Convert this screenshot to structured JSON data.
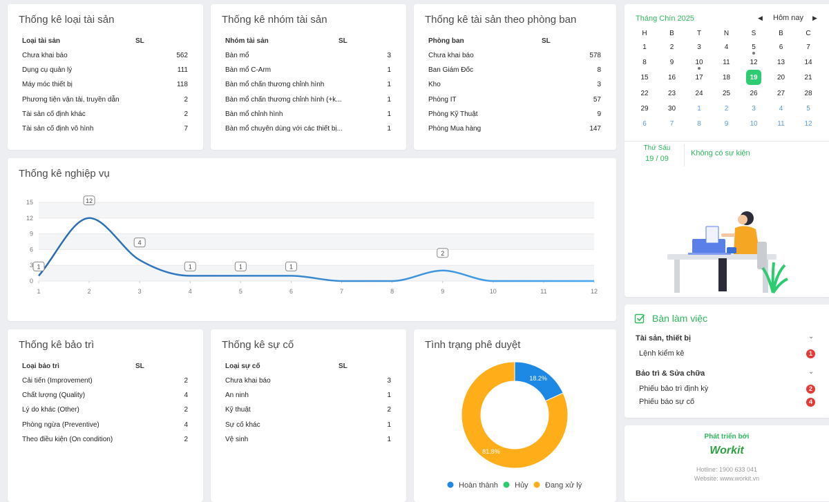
{
  "asset_types": {
    "title": "Thống kê loại tài sản",
    "columns": [
      "Loại tài sản",
      "SL"
    ],
    "rows": [
      [
        "Chưa khai báo",
        562
      ],
      [
        "Dụng cụ quản lý",
        111
      ],
      [
        "Máy móc thiết bị",
        118
      ],
      [
        "Phương tiện vận tải, truyền dẫn",
        2
      ],
      [
        "Tài sản cố định khác",
        2
      ],
      [
        "Tài sản cố định vô hình",
        7
      ]
    ]
  },
  "asset_groups": {
    "title": "Thống kê nhóm tài sản",
    "columns": [
      "Nhóm tài sản",
      "SL"
    ],
    "rows": [
      [
        "Bàn mổ",
        3
      ],
      [
        "Bàn mổ C-Arm",
        1
      ],
      [
        "Bàn mổ chấn thương chỉnh hình",
        1
      ],
      [
        "Bàn mổ chấn thương chỉnh hình (+k...",
        1
      ],
      [
        "Bàn mổ chỉnh hình",
        1
      ],
      [
        "Bàn mổ chuyên dùng với các thiết bị...",
        1
      ]
    ]
  },
  "asset_departments": {
    "title": "Thống kê tài sản theo phòng ban",
    "columns": [
      "Phòng ban",
      "SL"
    ],
    "rows": [
      [
        "Chưa khai báo",
        578
      ],
      [
        "Ban Giám Đốc",
        8
      ],
      [
        "Kho",
        3
      ],
      [
        "Phòng IT",
        57
      ],
      [
        "Phòng Kỹ Thuật",
        9
      ],
      [
        "Phòng Mua hàng",
        147
      ]
    ]
  },
  "maintenance": {
    "title": "Thống kê bảo trì",
    "columns": [
      "Loại bảo trì",
      "SL"
    ],
    "rows": [
      [
        "Cải tiến (Improvement)",
        2
      ],
      [
        "Chất lượng (Quality)",
        4
      ],
      [
        "Lý do khác (Other)",
        2
      ],
      [
        "Phòng ngừa (Preventive)",
        4
      ],
      [
        "Theo điều kiện (On condition)",
        2
      ]
    ]
  },
  "incidents": {
    "title": "Thống kê sự cố",
    "columns": [
      "Loại sự cố",
      "SL"
    ],
    "rows": [
      [
        "Chưa khai báo",
        3
      ],
      [
        "An ninh",
        1
      ],
      [
        "Kỹ thuật",
        2
      ],
      [
        "Sự cố khác",
        1
      ],
      [
        "Vệ sinh",
        1
      ]
    ]
  },
  "chart_data": [
    {
      "type": "line",
      "title": "Thống kê nghiệp vụ",
      "x": [
        1,
        2,
        3,
        4,
        5,
        6,
        7,
        8,
        9,
        10,
        11,
        12
      ],
      "values": [
        1,
        12,
        4,
        1,
        1,
        1,
        0,
        0,
        2,
        0,
        0,
        0
      ],
      "color": "#2f80c8",
      "xlim": [
        1,
        12
      ],
      "xticks": [
        1,
        2,
        3,
        4,
        5,
        6,
        7,
        8,
        9,
        10,
        11,
        12
      ],
      "ylim": [
        0,
        15
      ],
      "yticks": [
        0,
        3,
        6,
        9,
        12,
        15
      ],
      "grid": true
    },
    {
      "type": "pie",
      "title": "Tình trạng phê duyệt",
      "categories": [
        "Hoàn thành",
        "Hủy",
        "Đang xử lý"
      ],
      "values": [
        18.2,
        0,
        81.8
      ],
      "value_labels": [
        "18.2%",
        null,
        "81.8%"
      ],
      "colors": [
        "#1e88e5",
        "#2ecc71",
        "#ffae1a"
      ],
      "donut": true,
      "legend": "bottom"
    }
  ],
  "calendar": {
    "month": "Tháng Chín 2025",
    "today_button": "Hôm nay",
    "weekdays": [
      "H",
      "B",
      "T",
      "N",
      "S",
      "B",
      "C"
    ],
    "weeks": [
      [
        1,
        2,
        3,
        4,
        5,
        6,
        7
      ],
      [
        8,
        9,
        10,
        11,
        12,
        13,
        14
      ],
      [
        15,
        16,
        17,
        18,
        19,
        20,
        21
      ],
      [
        22,
        23,
        24,
        25,
        26,
        27,
        28
      ],
      [
        29,
        30,
        1,
        2,
        3,
        4,
        5
      ],
      [
        6,
        7,
        8,
        9,
        10,
        11,
        12
      ]
    ],
    "selected_weekday": "Thứ Sáu",
    "selected_date": "19 / 09",
    "events": "Không có sự kiện"
  },
  "workspace": {
    "title": "Bàn làm việc",
    "groups": [
      {
        "name": "Tài sản, thiết bị",
        "items": [
          {
            "label": "Lệnh kiểm kê",
            "count": 1
          }
        ]
      },
      {
        "name": "Bảo trì & Sửa chữa",
        "items": [
          {
            "label": "Phiếu bảo trì định kỳ",
            "count": 2
          },
          {
            "label": "Phiếu báo sự cố",
            "count": 4
          }
        ]
      }
    ]
  },
  "footer": {
    "developed_by": "Phát triển bởi",
    "logo": "Workit",
    "hotline": "Hotline: 1900 633 041",
    "website": "Website: www.workit.vn"
  }
}
